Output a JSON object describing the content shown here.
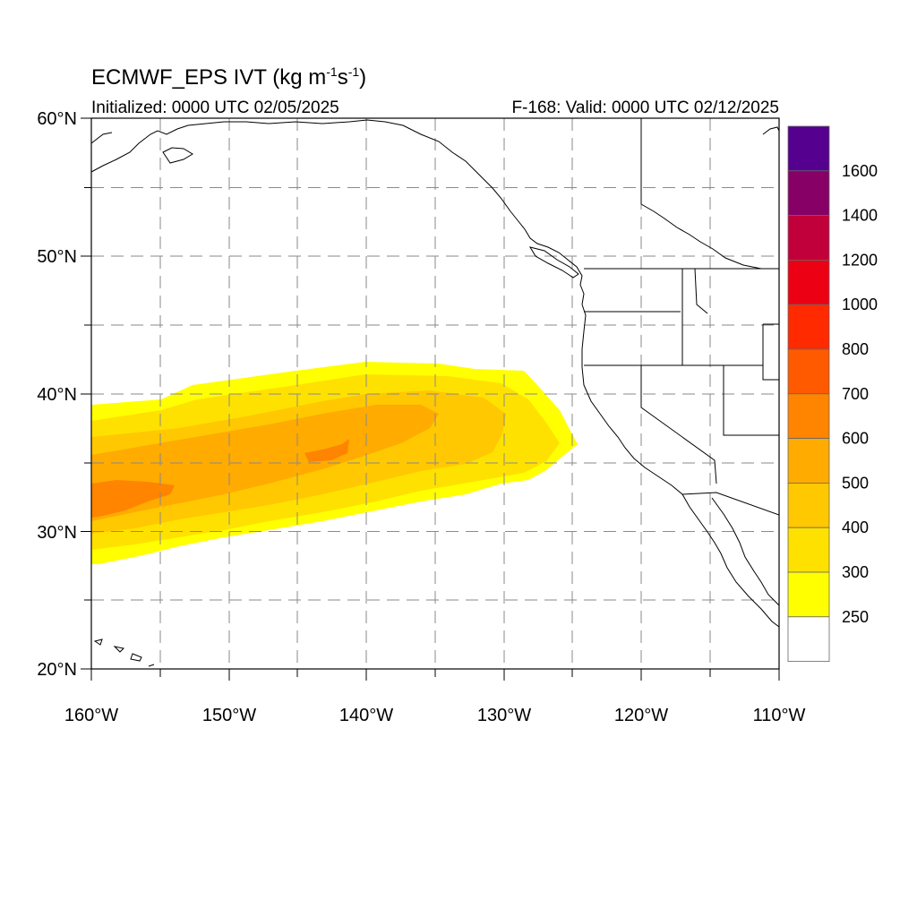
{
  "title": {
    "main": "ECMWF_EPS IVT (kg m",
    "exp1": "-1",
    "mid": "s",
    "exp2": "-1",
    "end": ")"
  },
  "initialized": "Initialized: 0000 UTC 02/05/2025",
  "valid": "F-168: Valid: 0000 UTC 02/12/2025",
  "lat_labels": [
    "60°N",
    "50°N",
    "40°N",
    "30°N",
    "20°N"
  ],
  "lon_labels": [
    "160°W",
    "150°W",
    "140°W",
    "130°W",
    "120°W",
    "110°W"
  ],
  "colorbar": {
    "labels": [
      "1600",
      "1400",
      "1200",
      "1000",
      "800",
      "700",
      "600",
      "500",
      "400",
      "300",
      "250"
    ],
    "colors": [
      "#55008f",
      "#870065",
      "#c1003b",
      "#ec0013",
      "#ff2a00",
      "#ff5a00",
      "#ff8400",
      "#ffab00",
      "#ffc800",
      "#ffe100",
      "#ffff00",
      "#ffffff"
    ]
  },
  "map": {
    "extent": {
      "lon": [
        -160,
        -110
      ],
      "lat": [
        20,
        60
      ]
    },
    "ivt_colors": {
      "250": "#ffff00",
      "300": "#ffe100",
      "400": "#ffc800",
      "500": "#ffab00",
      "600": "#ff8400"
    }
  }
}
